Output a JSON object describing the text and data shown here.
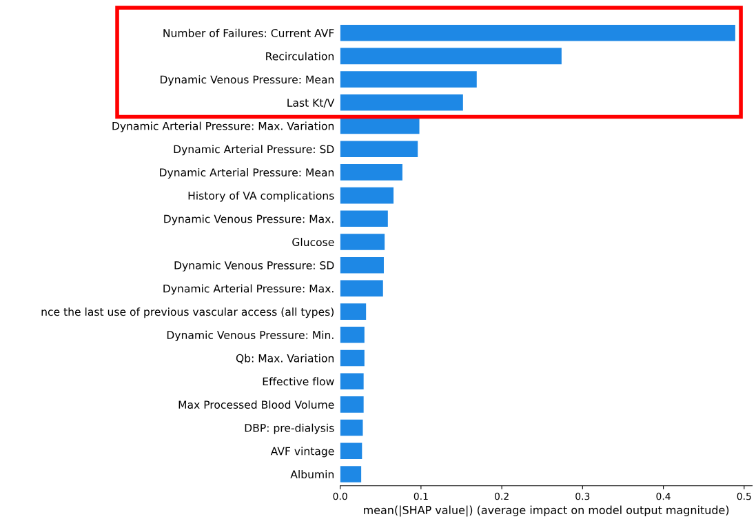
{
  "chart_data": {
    "type": "bar",
    "orientation": "horizontal",
    "xlabel": "mean(|SHAP value|) (average impact on model output magnitude)",
    "categories": [
      "Number of Failures: Current AVF",
      "Recirculation",
      "Dynamic Venous Pressure: Mean",
      "Last Kt/V",
      "Dynamic Arterial Pressure: Max. Variation",
      "Dynamic Arterial Pressure: SD",
      "Dynamic Arterial Pressure: Mean",
      "History of VA complications",
      "Dynamic Venous Pressure: Max.",
      "Glucose",
      "Dynamic Venous Pressure: SD",
      "Dynamic Arterial Pressure: Max.",
      "nce the last use of previous vascular access (all types)",
      "Dynamic Venous Pressure: Min.",
      "Qb: Max. Variation",
      "Effective flow",
      "Max Processed Blood Volume",
      "DBP: pre-dialysis",
      "AVF vintage",
      "Albumin"
    ],
    "values": [
      0.489,
      0.274,
      0.169,
      0.152,
      0.098,
      0.096,
      0.077,
      0.066,
      0.059,
      0.055,
      0.054,
      0.053,
      0.032,
      0.03,
      0.03,
      0.029,
      0.029,
      0.028,
      0.027,
      0.026
    ],
    "color": "#1e88e5",
    "xlim": [
      0,
      0.51
    ],
    "xticks": [
      {
        "value": 0,
        "label": "0.0"
      },
      0.1,
      0.2,
      0.3,
      0.4,
      0.5
    ],
    "tick_labels": "xy",
    "grid": false,
    "legend": false
  }
}
